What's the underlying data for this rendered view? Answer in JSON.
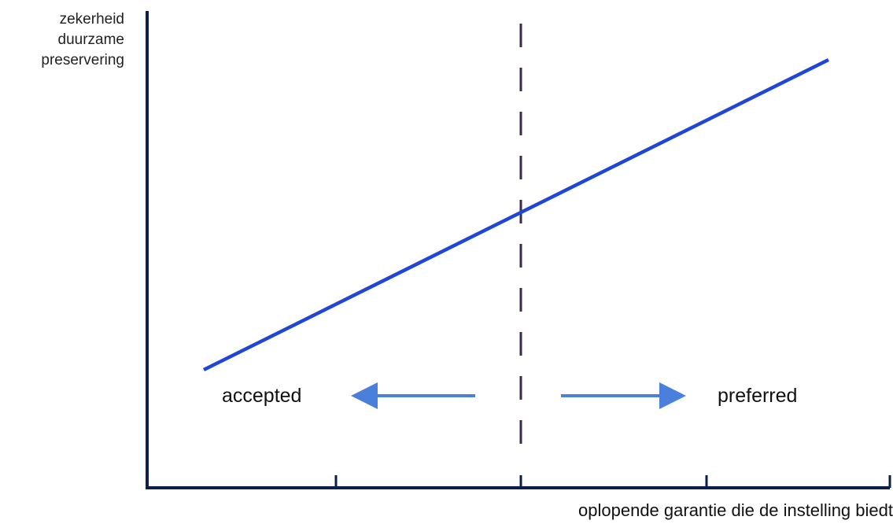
{
  "y_axis": {
    "label_lines": [
      "zekerheid",
      "duurzame",
      "preservering"
    ]
  },
  "x_axis": {
    "label": "oplopende garantie die de instelling biedt"
  },
  "regions": {
    "left_label": "accepted",
    "right_label": "preferred"
  },
  "colors": {
    "axis": "#0b1f4d",
    "trend_line": "#2046d8",
    "threshold_line": "#3b2a4f",
    "arrow": "#4a7fdc",
    "text": "#111111"
  },
  "icons": {
    "left_arrow": "arrow-left-icon",
    "right_arrow": "arrow-right-icon"
  }
}
